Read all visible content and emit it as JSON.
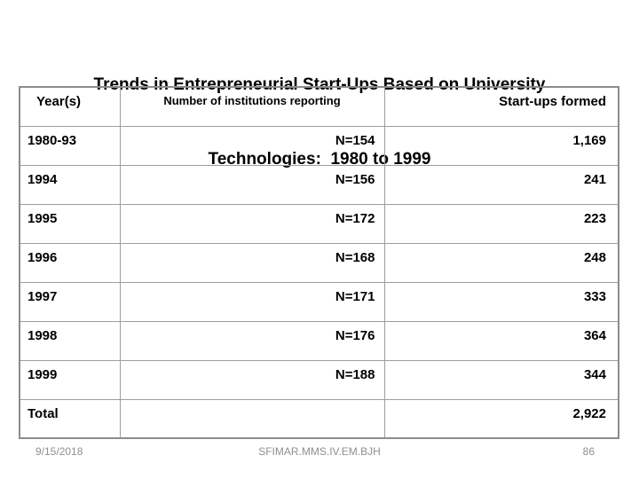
{
  "slide": {
    "title_line1": "Trends in Entrepreneurial Start-Ups Based on University",
    "title_line2": "Technologies:  1980 to 1999"
  },
  "table": {
    "headers": [
      "Year(s)",
      "Number of institutions reporting",
      "Start-ups formed"
    ],
    "rows": [
      {
        "year": "1980-93",
        "n": "N=154",
        "startups": "1,169"
      },
      {
        "year": "1994",
        "n": "N=156",
        "startups": "241"
      },
      {
        "year": "1995",
        "n": "N=172",
        "startups": "223"
      },
      {
        "year": "1996",
        "n": "N=168",
        "startups": "248"
      },
      {
        "year": "1997",
        "n": "N=171",
        "startups": "333"
      },
      {
        "year": "1998",
        "n": "N=176",
        "startups": "364"
      },
      {
        "year": "1999",
        "n": "N=188",
        "startups": "344"
      },
      {
        "year": "Total",
        "n": "",
        "startups": "2,922"
      }
    ]
  },
  "chart_data": {
    "type": "table",
    "title": "Trends in Entrepreneurial Start-Ups Based on University Technologies: 1980 to 1999",
    "columns": [
      "Year(s)",
      "Number of institutions reporting",
      "Start-ups formed"
    ],
    "categories": [
      "1980-93",
      "1994",
      "1995",
      "1996",
      "1997",
      "1998",
      "1999"
    ],
    "series": [
      {
        "name": "Number of institutions reporting",
        "values": [
          154,
          156,
          172,
          168,
          171,
          176,
          188
        ]
      },
      {
        "name": "Start-ups formed",
        "values": [
          1169,
          241,
          223,
          248,
          333,
          364,
          344
        ]
      }
    ],
    "total_startups_formed": 2922
  },
  "footer": {
    "date": "9/15/2018",
    "center": "SFIMAR.MMS.IV.EM.BJH",
    "page_number": "86"
  },
  "colors": {
    "background": "#ffffff",
    "text": "#000000",
    "inner_border": "#9e9e9e",
    "outer_border": "#8c8c8c",
    "footer_text": "#8f8f8f"
  }
}
